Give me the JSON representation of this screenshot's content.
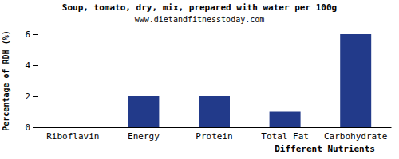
{
  "chart_data": {
    "type": "bar",
    "title": "Soup, tomato, dry, mix, prepared with water per 100g",
    "subtitle": "www.dietandfitnesstoday.com",
    "x_label": "Different Nutrients",
    "y_label": "Percentage of RDH (%)",
    "categories": [
      "Riboflavin",
      "Energy",
      "Protein",
      "Total Fat",
      "Carbohydrate"
    ],
    "values": [
      0,
      2,
      2,
      1,
      6
    ],
    "color": "#223a8a",
    "ylim": [
      0,
      6
    ],
    "yticks": [
      0,
      2,
      4,
      6
    ],
    "grid": false
  }
}
